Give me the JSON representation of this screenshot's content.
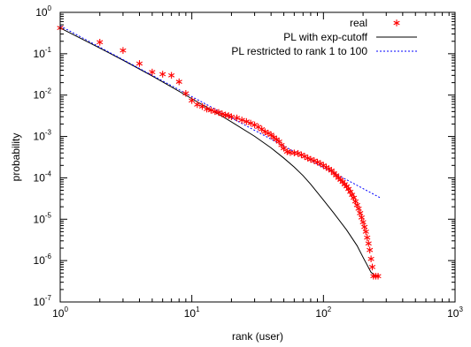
{
  "chart_data": {
    "type": "scatter",
    "xlabel": "rank (user)",
    "ylabel": "probability",
    "xscale": "log",
    "yscale": "log",
    "xlim": [
      1,
      1000
    ],
    "ylim": [
      1e-07,
      1
    ],
    "grid": false,
    "legend_position": "top-right",
    "x_ticks": [
      {
        "base": "10",
        "exp": "0",
        "value": 1
      },
      {
        "base": "10",
        "exp": "1",
        "value": 10
      },
      {
        "base": "10",
        "exp": "2",
        "value": 100
      },
      {
        "base": "10",
        "exp": "3",
        "value": 1000
      }
    ],
    "y_ticks": [
      {
        "base": "10",
        "exp": "0",
        "value": 1
      },
      {
        "base": "10",
        "exp": "-1",
        "value": 0.1
      },
      {
        "base": "10",
        "exp": "-2",
        "value": 0.01
      },
      {
        "base": "10",
        "exp": "-3",
        "value": 0.001
      },
      {
        "base": "10",
        "exp": "-4",
        "value": 0.0001
      },
      {
        "base": "10",
        "exp": "-5",
        "value": 1e-05
      },
      {
        "base": "10",
        "exp": "-6",
        "value": 1e-06
      },
      {
        "base": "10",
        "exp": "-7",
        "value": 1e-07
      }
    ],
    "series": [
      {
        "name": "real",
        "kind": "points",
        "marker": "asterisk",
        "color": "#ff0000",
        "points": [
          [
            1,
            0.42
          ],
          [
            2,
            0.19
          ],
          [
            3,
            0.12
          ],
          [
            4,
            0.058
          ],
          [
            5,
            0.036
          ],
          [
            6,
            0.032
          ],
          [
            7,
            0.03
          ],
          [
            8,
            0.021
          ],
          [
            9,
            0.011
          ],
          [
            10,
            0.0074
          ],
          [
            11,
            0.0059
          ],
          [
            12,
            0.0053
          ],
          [
            13,
            0.0046
          ],
          [
            14,
            0.0043
          ],
          [
            15,
            0.004
          ],
          [
            16,
            0.0038
          ],
          [
            17,
            0.0035
          ],
          [
            18,
            0.0033
          ],
          [
            19,
            0.0032
          ],
          [
            20,
            0.003
          ],
          [
            22,
            0.0028
          ],
          [
            24,
            0.0025
          ],
          [
            26,
            0.0023
          ],
          [
            28,
            0.0021
          ],
          [
            30,
            0.0019
          ],
          [
            32,
            0.0017
          ],
          [
            34,
            0.0015
          ],
          [
            36,
            0.0013
          ],
          [
            38,
            0.0012
          ],
          [
            40,
            0.0011
          ],
          [
            42,
            0.00095
          ],
          [
            44,
            0.00085
          ],
          [
            46,
            0.00075
          ],
          [
            48,
            0.00062
          ],
          [
            50,
            0.00052
          ],
          [
            53,
            0.00043
          ],
          [
            56,
            0.00041
          ],
          [
            60,
            0.0004
          ],
          [
            64,
            0.00039
          ],
          [
            68,
            0.00036
          ],
          [
            72,
            0.00033
          ],
          [
            76,
            0.0003
          ],
          [
            80,
            0.00028
          ],
          [
            85,
            0.00026
          ],
          [
            90,
            0.00024
          ],
          [
            95,
            0.00022
          ],
          [
            100,
            0.0002
          ],
          [
            105,
            0.00018
          ],
          [
            110,
            0.000165
          ],
          [
            115,
            0.00015
          ],
          [
            120,
            0.00013
          ],
          [
            125,
            0.000115
          ],
          [
            130,
            0.0001
          ],
          [
            135,
            9e-05
          ],
          [
            140,
            8e-05
          ],
          [
            145,
            7e-05
          ],
          [
            150,
            6.2e-05
          ],
          [
            155,
            5.4e-05
          ],
          [
            160,
            4.6e-05
          ],
          [
            165,
            3.9e-05
          ],
          [
            170,
            3.3e-05
          ],
          [
            175,
            2.7e-05
          ],
          [
            180,
            2.2e-05
          ],
          [
            185,
            1.8e-05
          ],
          [
            190,
            1.4e-05
          ],
          [
            195,
            1.1e-05
          ],
          [
            200,
            8.5e-06
          ],
          [
            205,
            6.5e-06
          ],
          [
            210,
            5e-06
          ],
          [
            215,
            3.6e-06
          ],
          [
            220,
            2.6e-06
          ],
          [
            225,
            1.8e-06
          ],
          [
            230,
            1.1e-06
          ],
          [
            235,
            7e-07
          ],
          [
            240,
            4.2e-07
          ],
          [
            250,
            4.2e-07
          ],
          [
            260,
            4.2e-07
          ]
        ]
      },
      {
        "name": "PL with exp-cutoff",
        "kind": "line",
        "style": "solid",
        "color": "#000000",
        "points": [
          [
            1,
            0.42
          ],
          [
            2,
            0.137
          ],
          [
            3,
            0.07
          ],
          [
            5,
            0.029
          ],
          [
            7,
            0.0158
          ],
          [
            10,
            0.0082
          ],
          [
            15,
            0.0039
          ],
          [
            20,
            0.00225
          ],
          [
            30,
            0.00101
          ],
          [
            40,
            0.00053
          ],
          [
            50,
            0.0003
          ],
          [
            60,
            0.000182
          ],
          [
            70,
            0.000113
          ],
          [
            80,
            7e-05
          ],
          [
            100,
            2.9e-05
          ],
          [
            120,
            1.4e-05
          ],
          [
            150,
            5.5e-06
          ],
          [
            180,
            2.3e-06
          ],
          [
            200,
            1.2e-06
          ],
          [
            230,
            5.2e-07
          ],
          [
            250,
            4.2e-07
          ],
          [
            260,
            4e-07
          ]
        ]
      },
      {
        "name": "PL restricted to rank 1 to 100",
        "kind": "line",
        "style": "dotted",
        "color": "#0000ff",
        "points": [
          [
            1,
            0.47
          ],
          [
            270,
            3.3e-05
          ]
        ]
      }
    ]
  }
}
